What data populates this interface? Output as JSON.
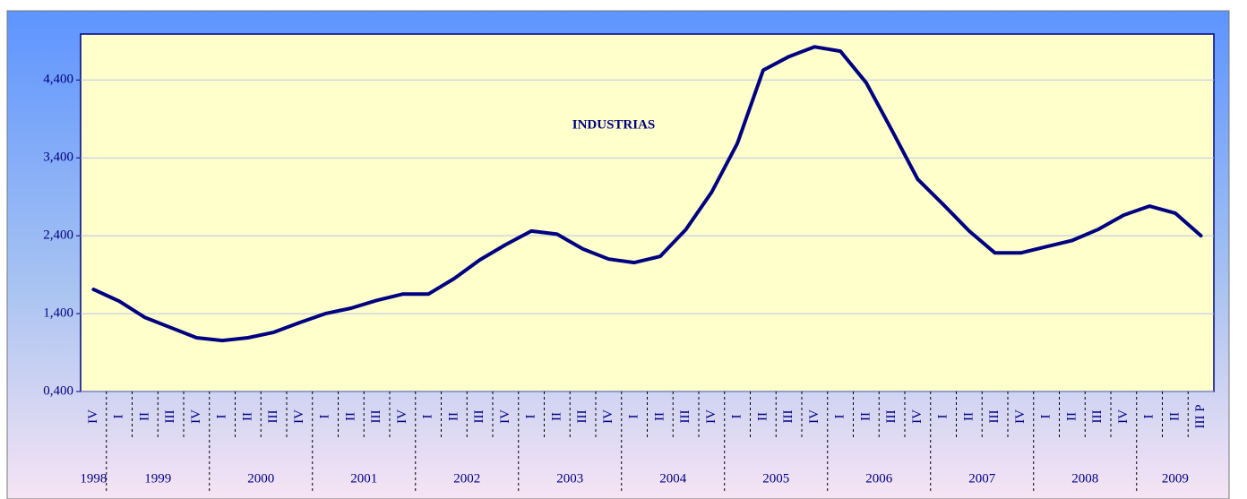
{
  "chart_data": {
    "type": "line",
    "title": "INDUSTRIAS",
    "category_groups": [
      {
        "label": "1998",
        "quarters": [
          "IV"
        ]
      },
      {
        "label": "1999",
        "quarters": [
          "I",
          "II",
          "III",
          "IV"
        ]
      },
      {
        "label": "2000",
        "quarters": [
          "I",
          "II",
          "III",
          "IV"
        ]
      },
      {
        "label": "2001",
        "quarters": [
          "I",
          "II",
          "III",
          "IV"
        ]
      },
      {
        "label": "2002",
        "quarters": [
          "I",
          "II",
          "III",
          "IV"
        ]
      },
      {
        "label": "2003",
        "quarters": [
          "I",
          "II",
          "III",
          "IV"
        ]
      },
      {
        "label": "2004",
        "quarters": [
          "I",
          "II",
          "III",
          "IV"
        ]
      },
      {
        "label": "2005",
        "quarters": [
          "I",
          "II",
          "III",
          "IV"
        ]
      },
      {
        "label": "2006",
        "quarters": [
          "I",
          "II",
          "III",
          "IV"
        ]
      },
      {
        "label": "2007",
        "quarters": [
          "I",
          "II",
          "III",
          "IV"
        ]
      },
      {
        "label": "2008",
        "quarters": [
          "I",
          "II",
          "III",
          "IV"
        ]
      },
      {
        "label": "2009",
        "quarters": [
          "I",
          "II",
          "III P"
        ]
      }
    ],
    "series": [
      {
        "name": "INDUSTRIAS",
        "color": "#000080",
        "values": [
          1710,
          1560,
          1350,
          1220,
          1090,
          1055,
          1090,
          1160,
          1285,
          1400,
          1470,
          1570,
          1650,
          1650,
          1850,
          2090,
          2285,
          2460,
          2420,
          2230,
          2100,
          2055,
          2135,
          2480,
          2960,
          3585,
          4525,
          4700,
          4825,
          4770,
          4365,
          3755,
          3125,
          2800,
          2460,
          2180,
          2180,
          2260,
          2340,
          2480,
          2665,
          2780,
          2690,
          2400
        ]
      }
    ],
    "ylim": [
      400,
      4990
    ],
    "yticks": [
      {
        "value": 400,
        "label": "0,400"
      },
      {
        "value": 1400,
        "label": "1,400"
      },
      {
        "value": 2400,
        "label": "2,400"
      },
      {
        "value": 3400,
        "label": "3,400"
      },
      {
        "value": 4400,
        "label": "4,400"
      }
    ],
    "grid": true
  }
}
